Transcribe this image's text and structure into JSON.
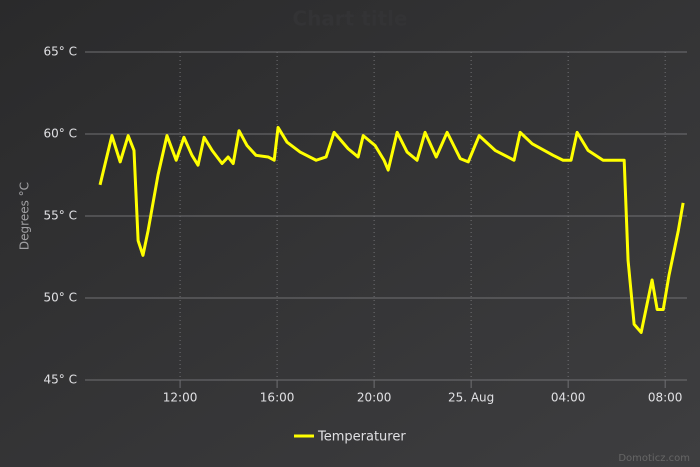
{
  "chart_data": {
    "type": "line",
    "title": "Chart title",
    "y_label": "Degrees °C",
    "credits": "Domoticz.com",
    "x": [
      8.7,
      9.19,
      9.53,
      9.86,
      10.1,
      10.27,
      10.47,
      10.68,
      11.09,
      11.46,
      11.84,
      12.16,
      12.49,
      12.74,
      12.99,
      13.32,
      13.73,
      13.98,
      14.19,
      14.43,
      14.76,
      15.13,
      15.63,
      15.88,
      16.04,
      16.41,
      16.95,
      17.61,
      18.02,
      18.35,
      18.93,
      19.34,
      19.55,
      20.04,
      20.41,
      20.58,
      20.95,
      21.36,
      21.77,
      22.1,
      22.56,
      23.01,
      23.55,
      23.88,
      24.33,
      24.99,
      25.77,
      26.02,
      26.52,
      27.38,
      27.79,
      28.12,
      28.37,
      28.82,
      29.44,
      30.31,
      30.47,
      30.72,
      31.01,
      31.46,
      31.67,
      31.92,
      32.16,
      32.54,
      32.74
    ],
    "series": [
      {
        "name": "Temperaturer",
        "color": "#ffff00",
        "values": [
          56.9,
          59.9,
          58.3,
          59.9,
          59.0,
          53.5,
          52.6,
          54.1,
          57.5,
          59.9,
          58.4,
          59.8,
          58.7,
          58.1,
          59.8,
          59.0,
          58.2,
          58.6,
          58.2,
          60.2,
          59.3,
          58.7,
          58.6,
          58.4,
          60.4,
          59.5,
          58.9,
          58.4,
          58.6,
          60.1,
          59.1,
          58.6,
          59.9,
          59.3,
          58.4,
          57.8,
          60.1,
          58.9,
          58.4,
          60.1,
          58.6,
          60.1,
          58.5,
          58.3,
          59.9,
          59.0,
          58.4,
          60.1,
          59.4,
          58.7,
          58.4,
          58.4,
          60.1,
          59.0,
          58.4,
          58.4,
          52.3,
          48.4,
          47.9,
          51.1,
          49.3,
          49.3,
          51.4,
          54.1,
          55.8
        ]
      }
    ],
    "xlim": [
      8.08,
      32.9
    ],
    "xticks": [
      {
        "value": 12,
        "label": "12:00"
      },
      {
        "value": 16,
        "label": "16:00"
      },
      {
        "value": 20,
        "label": "20:00"
      },
      {
        "value": 24,
        "label": "25. Aug"
      },
      {
        "value": 28,
        "label": "04:00"
      },
      {
        "value": 32,
        "label": "08:00"
      }
    ],
    "ylim": [
      45,
      65
    ],
    "yticks": [
      {
        "value": 45,
        "label": "45° C"
      },
      {
        "value": 50,
        "label": "50° C"
      },
      {
        "value": 55,
        "label": "55° C"
      },
      {
        "value": 60,
        "label": "60° C"
      },
      {
        "value": 65,
        "label": "65° C"
      }
    ],
    "grid": true
  }
}
